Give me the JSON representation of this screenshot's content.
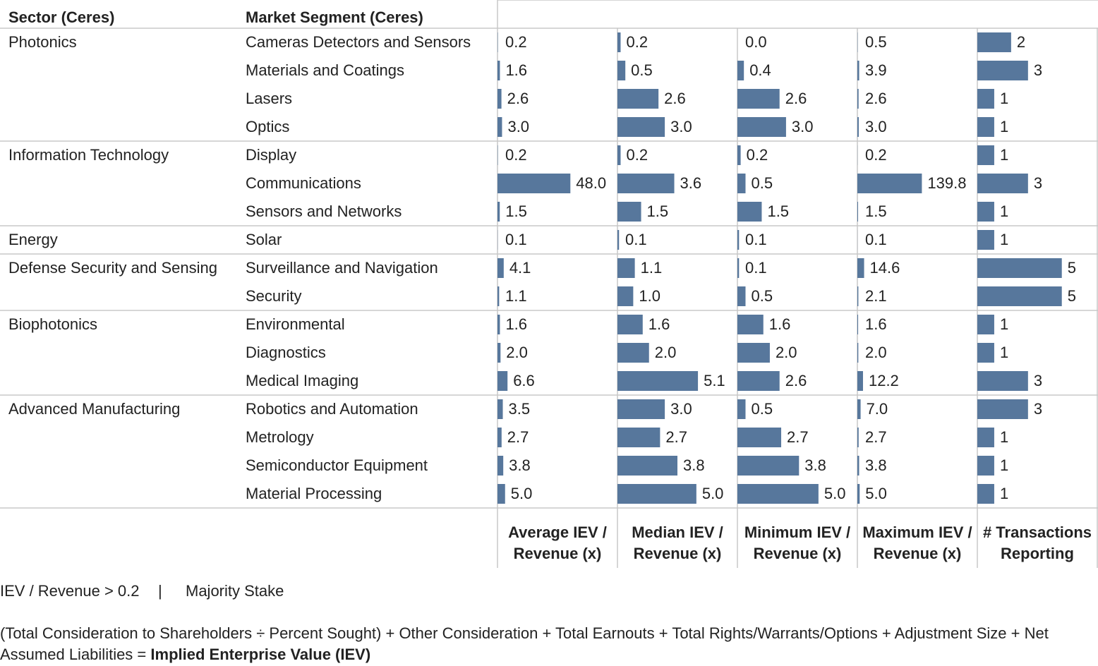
{
  "chart_data": {
    "type": "bar",
    "sector_header": "Sector (Ceres)",
    "segment_header": "Market Segment (Ceres)",
    "sectors": [
      "Photonics",
      null,
      null,
      null,
      "Information Technology",
      null,
      null,
      "Energy",
      "Defense Security and Sensing",
      null,
      "Biophotonics",
      null,
      null,
      "Advanced Manufacturing",
      null,
      null,
      null
    ],
    "categories": [
      "Cameras Detectors and Sensors",
      "Materials and Coatings",
      "Lasers",
      "Optics",
      "Display",
      "Communications",
      "Sensors and Networks",
      "Solar",
      "Surveillance and Navigation",
      "Security",
      "Environmental",
      "Diagnostics",
      "Medical Imaging",
      "Robotics and Automation",
      "Metrology",
      "Semiconductor Equipment",
      "Material Processing"
    ],
    "series": [
      {
        "name": "Average IEV / Revenue (x)",
        "color": "#57779c",
        "xlim": [
          0,
          79
        ],
        "values": [
          0.2,
          1.6,
          2.6,
          3.0,
          0.2,
          48.0,
          1.5,
          0.1,
          4.1,
          1.1,
          1.6,
          2.0,
          6.6,
          3.5,
          2.7,
          3.8,
          5.0
        ],
        "value_labels": [
          "0.2",
          "1.6",
          "2.6",
          "3.0",
          "0.2",
          "48.0",
          "1.5",
          "0.1",
          "4.1",
          "1.1",
          "1.6",
          "2.0",
          "6.6",
          "3.5",
          "2.7",
          "3.8",
          "5.0"
        ]
      },
      {
        "name": "Median IEV / Revenue (x)",
        "color": "#57779c",
        "xlim": [
          0,
          7.6
        ],
        "values": [
          0.2,
          0.5,
          2.6,
          3.0,
          0.2,
          3.6,
          1.5,
          0.1,
          1.1,
          1.0,
          1.6,
          2.0,
          5.1,
          3.0,
          2.7,
          3.8,
          5.0
        ],
        "value_labels": [
          "0.2",
          "0.5",
          "2.6",
          "3.0",
          "0.2",
          "3.6",
          "1.5",
          "0.1",
          "1.1",
          "1.0",
          "1.6",
          "2.0",
          "5.1",
          "3.0",
          "2.7",
          "3.8",
          "5.0"
        ]
      },
      {
        "name": "Minimum IEV / Revenue (x)",
        "color": "#57779c",
        "xlim": [
          0,
          7.4
        ],
        "values": [
          0.0,
          0.4,
          2.6,
          3.0,
          0.2,
          0.5,
          1.5,
          0.1,
          0.1,
          0.5,
          1.6,
          2.0,
          2.6,
          0.5,
          2.7,
          3.8,
          5.0
        ],
        "value_labels": [
          "0.0",
          "0.4",
          "2.6",
          "3.0",
          "0.2",
          "0.5",
          "1.5",
          "0.1",
          "0.1",
          "0.5",
          "1.6",
          "2.0",
          "2.6",
          "0.5",
          "2.7",
          "3.8",
          "5.0"
        ]
      },
      {
        "name": "Maximum IEV / Revenue (x)",
        "color": "#57779c",
        "xlim": [
          0,
          260
        ],
        "values": [
          0.5,
          3.9,
          2.6,
          3.0,
          0.2,
          139.8,
          1.5,
          0.1,
          14.6,
          2.1,
          1.6,
          2.0,
          12.2,
          7.0,
          2.7,
          3.8,
          5.0
        ],
        "value_labels": [
          "0.5",
          "3.9",
          "2.6",
          "3.0",
          "0.2",
          "139.8",
          "1.5",
          "0.1",
          "14.6",
          "2.1",
          "1.6",
          "2.0",
          "12.2",
          "7.0",
          "2.7",
          "3.8",
          "5.0"
        ]
      },
      {
        "name": "# Transactions Reporting",
        "color": "#57779c",
        "xlim": [
          0,
          7.1
        ],
        "values": [
          2,
          3,
          1,
          1,
          1,
          3,
          1,
          1,
          5,
          5,
          1,
          1,
          3,
          3,
          1,
          1,
          1
        ]
      }
    ],
    "filters": [
      "IEV / Revenue > 0.2",
      "Majority Stake"
    ],
    "filter_separator": "|",
    "formula": "(Total Consideration to Shareholders ÷ Percent Sought) + Other Consideration + Total Earnouts + Total Rights/Warrants/Options + Adjustment Size + Net Assumed Liabilities =",
    "formula_result": "Implied Enterprise Value  (IEV)"
  }
}
